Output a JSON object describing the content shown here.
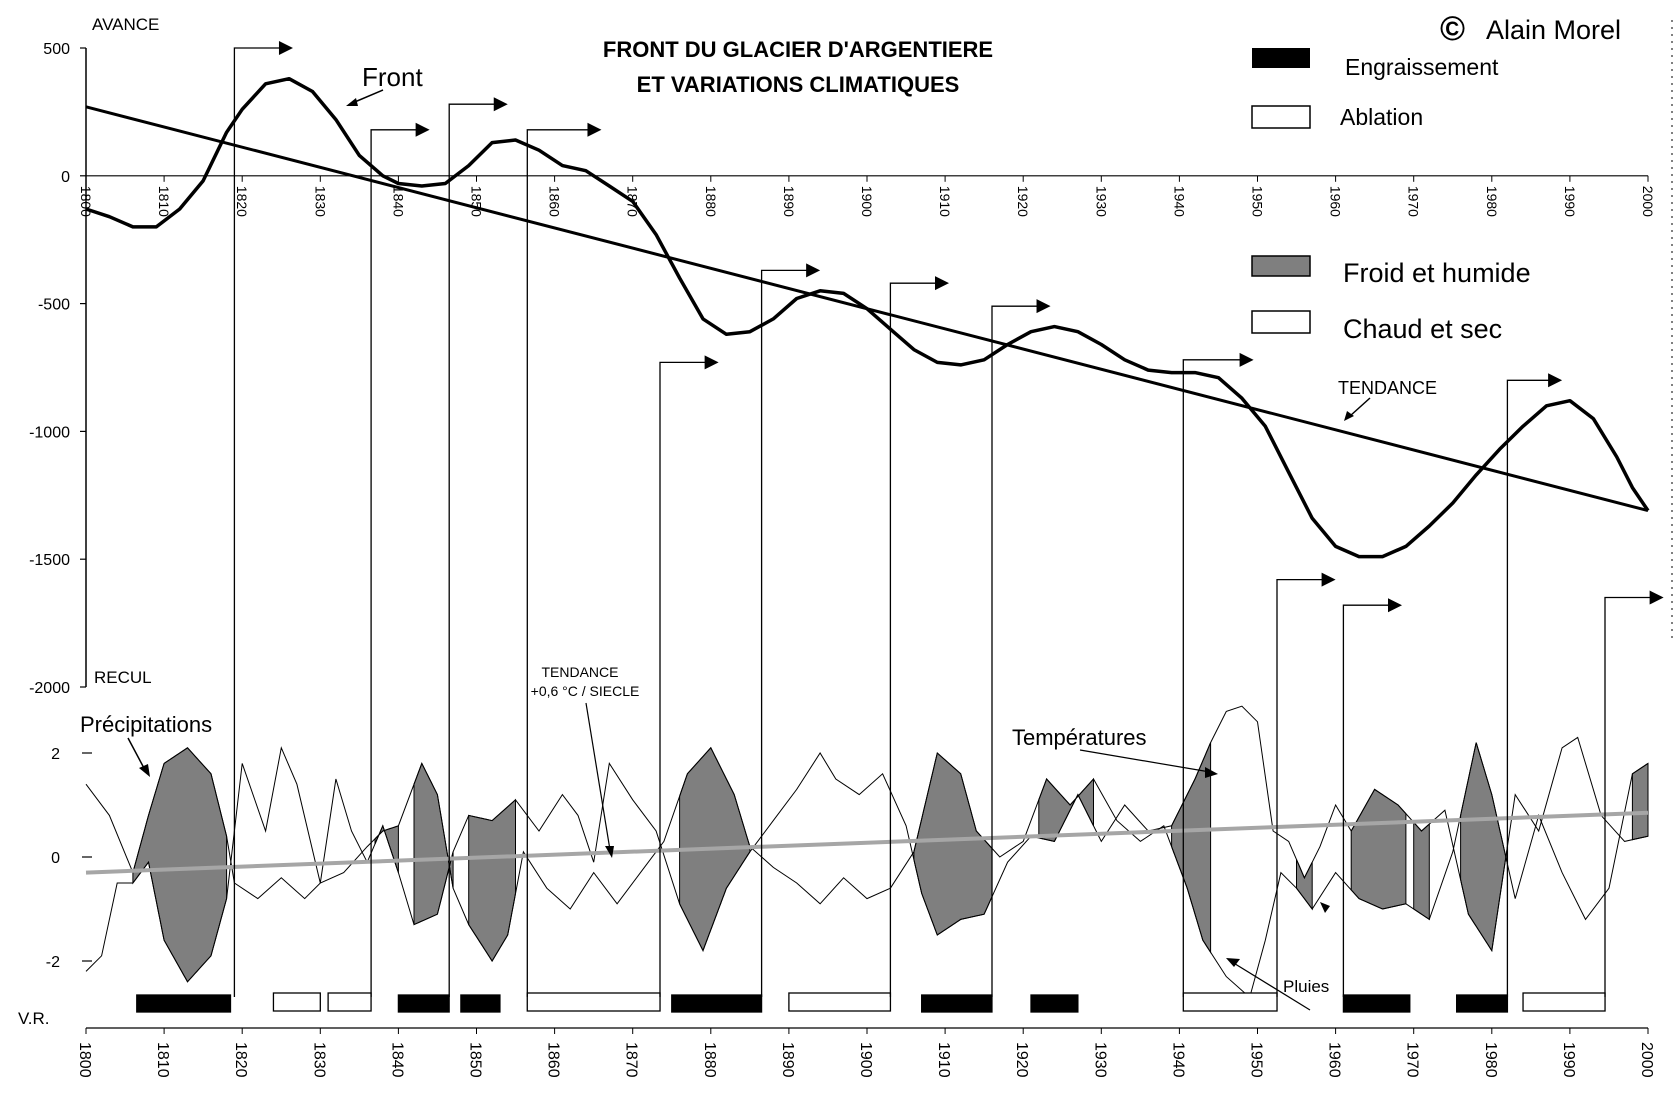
{
  "chart_data": {
    "type": "line",
    "title": "FRONT DU GLACIER D'ARGENTIERE\nET VARIATIONS CLIMATIQUES",
    "title_lines": [
      "FRONT DU GLACIER D'ARGENTIERE",
      "ET VARIATIONS CLIMATIQUES"
    ],
    "copyright": "Alain Morel",
    "copyright_symbol": "©",
    "upper_panel": {
      "ylabel_top": "AVANCE",
      "ylabel_bottom": "RECUL",
      "ylim": [
        -2000,
        500
      ],
      "yticks": [
        500,
        0,
        -500,
        -1000,
        -1500,
        -2000
      ],
      "xlim": [
        1800,
        2000
      ],
      "xticks": [
        1800,
        1810,
        1820,
        1830,
        1840,
        1850,
        1860,
        1870,
        1880,
        1890,
        1900,
        1910,
        1920,
        1930,
        1940,
        1950,
        1960,
        1970,
        1980,
        1990,
        2000
      ],
      "front": {
        "label": "Front",
        "points": [
          [
            1800,
            -130
          ],
          [
            1803,
            -160
          ],
          [
            1806,
            -200
          ],
          [
            1809,
            -200
          ],
          [
            1812,
            -130
          ],
          [
            1815,
            -20
          ],
          [
            1818,
            170
          ],
          [
            1820,
            260
          ],
          [
            1823,
            360
          ],
          [
            1826,
            380
          ],
          [
            1829,
            330
          ],
          [
            1832,
            220
          ],
          [
            1835,
            80
          ],
          [
            1838,
            0
          ],
          [
            1840,
            -30
          ],
          [
            1843,
            -40
          ],
          [
            1846,
            -30
          ],
          [
            1849,
            40
          ],
          [
            1852,
            130
          ],
          [
            1855,
            140
          ],
          [
            1858,
            100
          ],
          [
            1861,
            40
          ],
          [
            1864,
            20
          ],
          [
            1867,
            -40
          ],
          [
            1870,
            -100
          ],
          [
            1873,
            -230
          ],
          [
            1876,
            -400
          ],
          [
            1879,
            -560
          ],
          [
            1882,
            -620
          ],
          [
            1885,
            -610
          ],
          [
            1888,
            -560
          ],
          [
            1891,
            -480
          ],
          [
            1894,
            -450
          ],
          [
            1897,
            -460
          ],
          [
            1900,
            -520
          ],
          [
            1903,
            -600
          ],
          [
            1906,
            -680
          ],
          [
            1909,
            -730
          ],
          [
            1912,
            -740
          ],
          [
            1915,
            -720
          ],
          [
            1918,
            -660
          ],
          [
            1921,
            -610
          ],
          [
            1924,
            -590
          ],
          [
            1927,
            -610
          ],
          [
            1930,
            -660
          ],
          [
            1933,
            -720
          ],
          [
            1936,
            -760
          ],
          [
            1939,
            -770
          ],
          [
            1942,
            -770
          ],
          [
            1945,
            -790
          ],
          [
            1948,
            -870
          ],
          [
            1951,
            -980
          ],
          [
            1954,
            -1160
          ],
          [
            1957,
            -1340
          ],
          [
            1960,
            -1450
          ],
          [
            1963,
            -1490
          ],
          [
            1966,
            -1490
          ],
          [
            1969,
            -1450
          ],
          [
            1972,
            -1370
          ],
          [
            1975,
            -1280
          ],
          [
            1978,
            -1170
          ],
          [
            1981,
            -1070
          ],
          [
            1984,
            -980
          ],
          [
            1987,
            -900
          ],
          [
            1990,
            -880
          ],
          [
            1993,
            -950
          ],
          [
            1996,
            -1100
          ],
          [
            1998,
            -1220
          ],
          [
            2000,
            -1310
          ]
        ]
      },
      "tendance": {
        "label": "TENDANCE",
        "points": [
          [
            1800,
            270
          ],
          [
            2000,
            -1310
          ]
        ]
      }
    },
    "lower_panel": {
      "ylabel": "V.R.",
      "yticks": [
        2,
        0,
        -2
      ],
      "ylim": [
        -3.5,
        3
      ],
      "xlim": [
        1800,
        2000
      ],
      "xticks": [
        1800,
        1810,
        1820,
        1830,
        1840,
        1850,
        1860,
        1870,
        1880,
        1890,
        1900,
        1910,
        1920,
        1930,
        1940,
        1950,
        1960,
        1970,
        1980,
        1990,
        2000
      ],
      "precipitations_label": "Précipitations",
      "temperatures_label": "Températures",
      "pluies_label": "Pluies",
      "temp_trend_label": "TENDANCE",
      "temp_trend_sublabel": "+0,6 °C / SIECLE",
      "temp_trend": [
        [
          1800,
          -0.3
        ],
        [
          2000,
          0.85
        ]
      ],
      "froid_humide_periods": [
        [
          1806,
          1818
        ],
        [
          1837,
          1840
        ],
        [
          1842,
          1847
        ],
        [
          1849,
          1855
        ],
        [
          1876,
          1885
        ],
        [
          1906,
          1916
        ],
        [
          1922,
          1929
        ],
        [
          1939,
          1944
        ],
        [
          1955,
          1957
        ],
        [
          1962,
          1969
        ],
        [
          1970,
          1972
        ],
        [
          1976,
          1982
        ],
        [
          1998,
          2000
        ]
      ],
      "precipitations": [
        [
          1800,
          1.4
        ],
        [
          1803,
          0.8
        ],
        [
          1806,
          -0.3
        ],
        [
          1808,
          0.8
        ],
        [
          1810,
          1.8
        ],
        [
          1813,
          2.1
        ],
        [
          1816,
          1.6
        ],
        [
          1818,
          0.4
        ],
        [
          1819,
          -0.5
        ],
        [
          1822,
          -0.8
        ],
        [
          1825,
          -0.4
        ],
        [
          1828,
          -0.8
        ],
        [
          1830,
          -0.5
        ],
        [
          1833,
          -0.3
        ],
        [
          1836,
          0.2
        ],
        [
          1838,
          0.5
        ],
        [
          1840,
          0.6
        ],
        [
          1843,
          1.8
        ],
        [
          1845,
          1.2
        ],
        [
          1847,
          -0.6
        ],
        [
          1849,
          -1.3
        ],
        [
          1852,
          -2.0
        ],
        [
          1854,
          -1.5
        ],
        [
          1856,
          0.1
        ],
        [
          1859,
          -0.6
        ],
        [
          1862,
          -1.0
        ],
        [
          1865,
          -0.3
        ],
        [
          1868,
          -0.9
        ],
        [
          1871,
          -0.3
        ],
        [
          1874,
          0.3
        ],
        [
          1877,
          1.6
        ],
        [
          1880,
          2.1
        ],
        [
          1883,
          1.2
        ],
        [
          1885,
          0.2
        ],
        [
          1888,
          -0.2
        ],
        [
          1891,
          -0.5
        ],
        [
          1894,
          -0.9
        ],
        [
          1897,
          -0.4
        ],
        [
          1900,
          -0.8
        ],
        [
          1903,
          -0.6
        ],
        [
          1906,
          0.1
        ],
        [
          1909,
          2.0
        ],
        [
          1912,
          1.6
        ],
        [
          1914,
          0.5
        ],
        [
          1917,
          0.0
        ],
        [
          1920,
          0.3
        ],
        [
          1923,
          1.5
        ],
        [
          1926,
          1.0
        ],
        [
          1929,
          1.5
        ],
        [
          1932,
          0.7
        ],
        [
          1935,
          0.3
        ],
        [
          1938,
          0.6
        ],
        [
          1941,
          -0.6
        ],
        [
          1943,
          -1.6
        ],
        [
          1946,
          -2.3
        ],
        [
          1949,
          -2.7
        ],
        [
          1951,
          -1.6
        ],
        [
          1953,
          -0.3
        ],
        [
          1955,
          -0.6
        ],
        [
          1957,
          -1.0
        ],
        [
          1960,
          -0.3
        ],
        [
          1963,
          -0.8
        ],
        [
          1966,
          -1.0
        ],
        [
          1969,
          -0.9
        ],
        [
          1972,
          -1.2
        ],
        [
          1975,
          0.1
        ],
        [
          1978,
          2.2
        ],
        [
          1980,
          1.2
        ],
        [
          1983,
          -0.8
        ],
        [
          1986,
          0.8
        ],
        [
          1989,
          -0.3
        ],
        [
          1992,
          -1.2
        ],
        [
          1995,
          -0.6
        ],
        [
          1998,
          1.6
        ],
        [
          2000,
          1.8
        ]
      ],
      "temperatures": [
        [
          1800,
          -2.2
        ],
        [
          1802,
          -1.9
        ],
        [
          1804,
          -0.5
        ],
        [
          1806,
          -0.5
        ],
        [
          1808,
          -0.1
        ],
        [
          1810,
          -1.6
        ],
        [
          1813,
          -2.4
        ],
        [
          1816,
          -1.9
        ],
        [
          1818,
          -0.8
        ],
        [
          1820,
          1.8
        ],
        [
          1823,
          0.5
        ],
        [
          1825,
          2.1
        ],
        [
          1827,
          1.4
        ],
        [
          1830,
          -0.5
        ],
        [
          1832,
          1.5
        ],
        [
          1834,
          0.5
        ],
        [
          1836,
          -0.1
        ],
        [
          1838,
          0.6
        ],
        [
          1840,
          -0.3
        ],
        [
          1842,
          -1.3
        ],
        [
          1845,
          -1.1
        ],
        [
          1847,
          0.1
        ],
        [
          1849,
          0.8
        ],
        [
          1852,
          0.7
        ],
        [
          1855,
          1.1
        ],
        [
          1858,
          0.5
        ],
        [
          1861,
          1.2
        ],
        [
          1863,
          0.8
        ],
        [
          1865,
          -0.1
        ],
        [
          1867,
          1.8
        ],
        [
          1870,
          1.1
        ],
        [
          1873,
          0.5
        ],
        [
          1876,
          -0.9
        ],
        [
          1879,
          -1.8
        ],
        [
          1882,
          -0.6
        ],
        [
          1885,
          0.1
        ],
        [
          1888,
          0.7
        ],
        [
          1891,
          1.3
        ],
        [
          1894,
          2.0
        ],
        [
          1896,
          1.5
        ],
        [
          1899,
          1.2
        ],
        [
          1902,
          1.6
        ],
        [
          1905,
          0.6
        ],
        [
          1907,
          -0.7
        ],
        [
          1909,
          -1.5
        ],
        [
          1912,
          -1.2
        ],
        [
          1915,
          -1.1
        ],
        [
          1918,
          -0.1
        ],
        [
          1921,
          0.4
        ],
        [
          1924,
          0.3
        ],
        [
          1927,
          1.2
        ],
        [
          1930,
          0.3
        ],
        [
          1933,
          1.0
        ],
        [
          1936,
          0.5
        ],
        [
          1939,
          0.6
        ],
        [
          1942,
          1.5
        ],
        [
          1944,
          2.2
        ],
        [
          1946,
          2.8
        ],
        [
          1948,
          2.9
        ],
        [
          1950,
          2.6
        ],
        [
          1952,
          0.5
        ],
        [
          1954,
          0.3
        ],
        [
          1956,
          -0.4
        ],
        [
          1958,
          0.2
        ],
        [
          1960,
          1.0
        ],
        [
          1962,
          0.5
        ],
        [
          1965,
          1.3
        ],
        [
          1968,
          1.0
        ],
        [
          1971,
          0.5
        ],
        [
          1974,
          0.9
        ],
        [
          1977,
          -1.1
        ],
        [
          1980,
          -1.8
        ],
        [
          1983,
          1.2
        ],
        [
          1986,
          0.5
        ],
        [
          1989,
          2.1
        ],
        [
          1991,
          2.3
        ],
        [
          1994,
          0.8
        ],
        [
          1997,
          0.3
        ],
        [
          2000,
          0.4
        ]
      ],
      "bilan_bars": [
        {
          "from": 1806.5,
          "to": 1818.5,
          "type": "Engraissement"
        },
        {
          "from": 1824,
          "to": 1830,
          "type": "Ablation"
        },
        {
          "from": 1831,
          "to": 1836.5,
          "type": "Ablation"
        },
        {
          "from": 1840,
          "to": 1846.5,
          "type": "Engraissement"
        },
        {
          "from": 1848,
          "to": 1853,
          "type": "Engraissement"
        },
        {
          "from": 1856.5,
          "to": 1873.5,
          "type": "Ablation"
        },
        {
          "from": 1875,
          "to": 1886.5,
          "type": "Engraissement"
        },
        {
          "from": 1890,
          "to": 1903,
          "type": "Ablation"
        },
        {
          "from": 1907,
          "to": 1916,
          "type": "Engraissement"
        },
        {
          "from": 1921,
          "to": 1927,
          "type": "Engraissement"
        },
        {
          "from": 1940.5,
          "to": 1952.5,
          "type": "Ablation"
        },
        {
          "from": 1961,
          "to": 1969.5,
          "type": "Engraissement"
        },
        {
          "from": 1975.5,
          "to": 1982,
          "type": "Engraissement"
        },
        {
          "from": 1984,
          "to": 1994.5,
          "type": "Ablation"
        }
      ],
      "links": [
        {
          "from_x": 1819,
          "to_x": 1826.5,
          "bar_y": -3.0,
          "arrow_y": 500
        },
        {
          "from_x": 1836.5,
          "to_x": 1844,
          "bar_y": -3.0,
          "arrow_y": 180
        },
        {
          "from_x": 1846.5,
          "to_x": 1854,
          "bar_y": -3.0,
          "arrow_y": 280
        },
        {
          "from_x": 1856.5,
          "to_x": 1866,
          "bar_y": -3.0,
          "arrow_y": 180
        },
        {
          "from_x": 1873.5,
          "to_x": 1881,
          "bar_y": -3.0,
          "arrow_y": -730
        },
        {
          "from_x": 1886.5,
          "to_x": 1894,
          "bar_y": -3.0,
          "arrow_y": -370
        },
        {
          "from_x": 1903,
          "to_x": 1910.5,
          "bar_y": -3.0,
          "arrow_y": -420
        },
        {
          "from_x": 1916,
          "to_x": 1923.5,
          "bar_y": -3.0,
          "arrow_y": -510
        },
        {
          "from_x": 1940.5,
          "to_x": 1949.5,
          "bar_y": -3.0,
          "arrow_y": -720
        },
        {
          "from_x": 1952.5,
          "to_x": 1960,
          "bar_y": -3.0,
          "arrow_y": -1580
        },
        {
          "from_x": 1961,
          "to_x": 1968.5,
          "bar_y": -3.0,
          "arrow_y": -1680
        },
        {
          "from_x": 1982,
          "to_x": 1989,
          "bar_y": -3.0,
          "arrow_y": -800
        },
        {
          "from_x": 1994.5,
          "to_x": 2002,
          "bar_y": -3.0,
          "arrow_y": -1650
        }
      ]
    },
    "legend": {
      "engraissement": "Engraissement",
      "ablation": "Ablation",
      "froid_humide": "Froid et humide",
      "chaud_sec": "Chaud et sec"
    },
    "colors": {
      "fill_grey": "#7f7f7f",
      "trend_grey": "#a6a6a6",
      "ink": "#000000"
    }
  }
}
